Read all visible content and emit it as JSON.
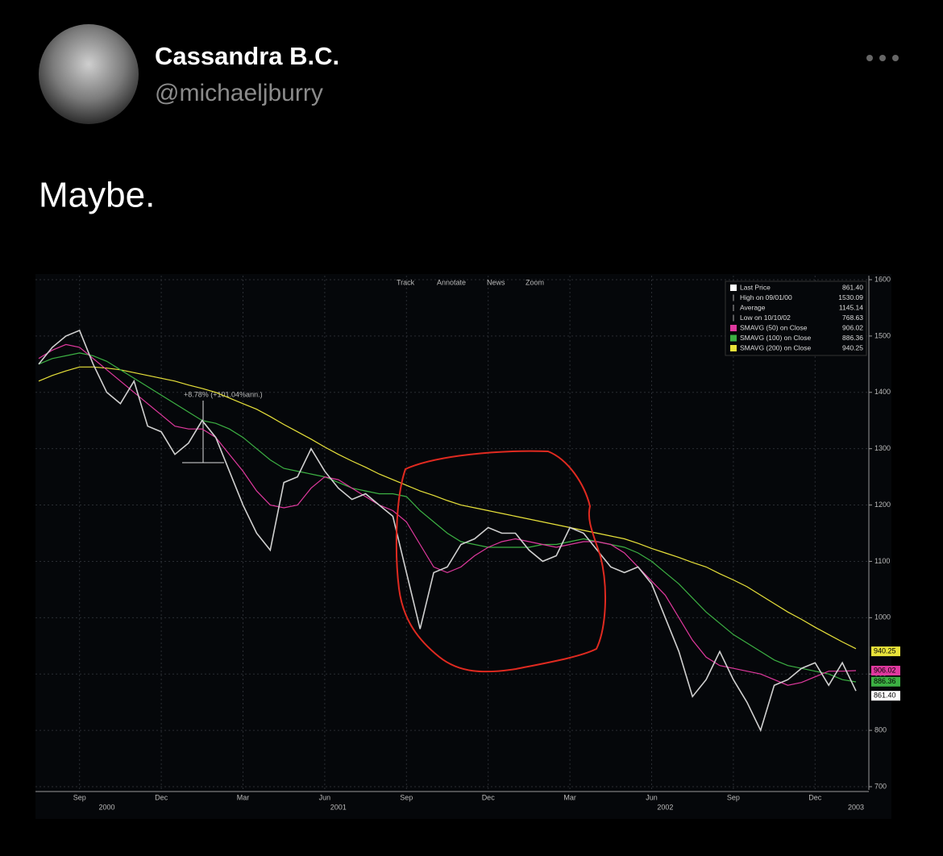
{
  "tweet": {
    "name": "Cassandra B.C.",
    "handle": "@michaeljburry",
    "text": "Maybe."
  },
  "chart_data": {
    "type": "line",
    "toolbar": [
      "Track",
      "Annotate",
      "News",
      "Zoom"
    ],
    "annotation": "+8.78% (+101.04%ann.)",
    "categories": [
      null,
      null,
      null,
      "Sep",
      null,
      null,
      null,
      null,
      null,
      "Dec",
      null,
      null,
      null,
      null,
      null,
      "Mar",
      null,
      null,
      null,
      null,
      null,
      "Jun",
      null,
      null,
      null,
      null,
      null,
      "Sep",
      null,
      null,
      null,
      null,
      null,
      "Dec",
      null,
      null,
      null,
      null,
      null,
      "Mar",
      null,
      null,
      null,
      null,
      null,
      "Jun",
      null,
      null,
      null,
      null,
      null,
      "Sep",
      null,
      null,
      null,
      null,
      null,
      "Dec",
      null,
      null,
      null
    ],
    "years": [
      null,
      null,
      null,
      null,
      null,
      "2000",
      null,
      null,
      null,
      null,
      null,
      null,
      null,
      null,
      null,
      null,
      null,
      null,
      null,
      null,
      null,
      null,
      "2001",
      null,
      null,
      null,
      null,
      null,
      null,
      null,
      null,
      null,
      null,
      null,
      null,
      null,
      null,
      null,
      null,
      null,
      null,
      null,
      null,
      null,
      null,
      null,
      "2002",
      null,
      null,
      null,
      null,
      null,
      null,
      null,
      null,
      null,
      null,
      null,
      null,
      null,
      "2003"
    ],
    "ylim": [
      700,
      1600
    ],
    "yticks": [
      700,
      800,
      900,
      1000,
      1100,
      1200,
      1300,
      1400,
      1500,
      1600
    ],
    "grid": true,
    "series": [
      {
        "name": "Last Price",
        "color": "#d0d0d0",
        "last_value": {
          "value": 861.4,
          "label": "861.40"
        },
        "values": [
          1450,
          1480,
          1500,
          1510,
          1450,
          1400,
          1380,
          1420,
          1340,
          1330,
          1290,
          1310,
          1350,
          1320,
          1260,
          1200,
          1150,
          1120,
          1240,
          1250,
          1300,
          1260,
          1230,
          1210,
          1220,
          1200,
          1180,
          1080,
          980,
          1080,
          1090,
          1130,
          1140,
          1160,
          1150,
          1150,
          1120,
          1100,
          1110,
          1160,
          1150,
          1120,
          1090,
          1080,
          1090,
          1060,
          1000,
          940,
          860,
          890,
          940,
          890,
          850,
          800,
          880,
          890,
          910,
          920,
          880,
          920,
          870
        ]
      },
      {
        "name": "SMAVG (50)  on Close",
        "color": "#e0399f",
        "last_value": {
          "value": 906.02,
          "label": "906.02"
        },
        "values": [
          1460,
          1475,
          1485,
          1480,
          1460,
          1440,
          1420,
          1400,
          1380,
          1360,
          1340,
          1335,
          1335,
          1320,
          1290,
          1260,
          1225,
          1200,
          1195,
          1200,
          1230,
          1250,
          1245,
          1230,
          1215,
          1200,
          1190,
          1170,
          1130,
          1090,
          1080,
          1090,
          1110,
          1125,
          1135,
          1140,
          1135,
          1130,
          1125,
          1130,
          1135,
          1135,
          1130,
          1115,
          1090,
          1065,
          1040,
          1000,
          960,
          930,
          915,
          910,
          905,
          900,
          890,
          880,
          885,
          895,
          905,
          905,
          906
        ]
      },
      {
        "name": "SMAVG (100)  on Close",
        "color": "#3cb043",
        "last_value": {
          "value": 886.36,
          "label": "886.36"
        },
        "values": [
          1450,
          1460,
          1465,
          1470,
          1465,
          1455,
          1440,
          1425,
          1410,
          1395,
          1380,
          1365,
          1350,
          1345,
          1335,
          1320,
          1300,
          1280,
          1265,
          1260,
          1255,
          1250,
          1240,
          1230,
          1225,
          1220,
          1220,
          1215,
          1190,
          1170,
          1150,
          1135,
          1130,
          1125,
          1125,
          1125,
          1125,
          1130,
          1130,
          1135,
          1140,
          1135,
          1130,
          1125,
          1115,
          1100,
          1080,
          1060,
          1035,
          1010,
          990,
          970,
          955,
          940,
          925,
          915,
          910,
          905,
          900,
          890,
          886
        ]
      },
      {
        "name": "SMAVG (200)  on Close",
        "color": "#e8e23a",
        "last_value": {
          "value": 940.25,
          "label": "940.25"
        },
        "values": [
          1420,
          1430,
          1438,
          1445,
          1445,
          1443,
          1440,
          1435,
          1430,
          1425,
          1420,
          1413,
          1407,
          1400,
          1390,
          1380,
          1370,
          1357,
          1343,
          1330,
          1317,
          1303,
          1290,
          1278,
          1267,
          1255,
          1245,
          1235,
          1225,
          1217,
          1208,
          1200,
          1195,
          1190,
          1185,
          1180,
          1175,
          1170,
          1165,
          1160,
          1155,
          1150,
          1145,
          1140,
          1132,
          1123,
          1115,
          1107,
          1098,
          1090,
          1078,
          1067,
          1055,
          1040,
          1025,
          1010,
          997,
          983,
          970,
          957,
          945
        ]
      }
    ],
    "stats": [
      {
        "label": "High on 09/01/00",
        "value": "1530.09"
      },
      {
        "label": "Average",
        "value": "1145.14"
      },
      {
        "label": "Low on 10/10/02",
        "value": "768.63"
      }
    ]
  }
}
